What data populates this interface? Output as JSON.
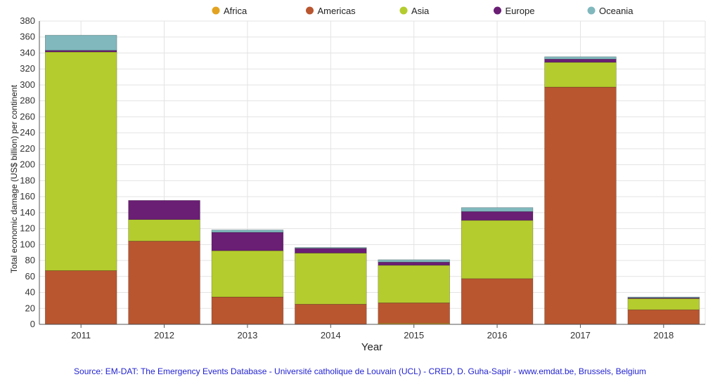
{
  "chart_data": {
    "type": "bar",
    "stacked": true,
    "categories": [
      "2011",
      "2012",
      "2013",
      "2014",
      "2015",
      "2016",
      "2017",
      "2018"
    ],
    "series": [
      {
        "name": "Africa",
        "color": "#e3a320",
        "values": [
          0.3,
          0.3,
          0.3,
          0.3,
          1.5,
          0.3,
          0.3,
          0.3
        ]
      },
      {
        "name": "Americas",
        "color": "#b9562f",
        "values": [
          67,
          104,
          34,
          25,
          25.5,
          57,
          297,
          18
        ]
      },
      {
        "name": "Asia",
        "color": "#b5cc2e",
        "values": [
          274,
          27,
          58,
          64,
          47,
          73,
          31,
          14
        ]
      },
      {
        "name": "Europe",
        "color": "#6a1e74",
        "values": [
          2,
          24,
          23,
          6,
          4,
          11,
          4,
          1
        ]
      },
      {
        "name": "Oceania",
        "color": "#80b8bd",
        "values": [
          19,
          0,
          3,
          1,
          3,
          5,
          3,
          1
        ]
      }
    ],
    "xlabel": "Year",
    "ylabel": "Total economic damage (US$ billion) per continent",
    "ylim": [
      0,
      380
    ],
    "yticks": [
      0,
      20,
      40,
      60,
      80,
      100,
      120,
      140,
      160,
      180,
      200,
      220,
      240,
      260,
      280,
      300,
      320,
      340,
      360,
      380
    ],
    "grid": true,
    "legend_position": "top"
  },
  "source_text": "Source: EM-DAT: The Emergency Events Database - Université catholique de Louvain (UCL) - CRED, D. Guha-Sapir - www.emdat.be, Brussels, Belgium"
}
